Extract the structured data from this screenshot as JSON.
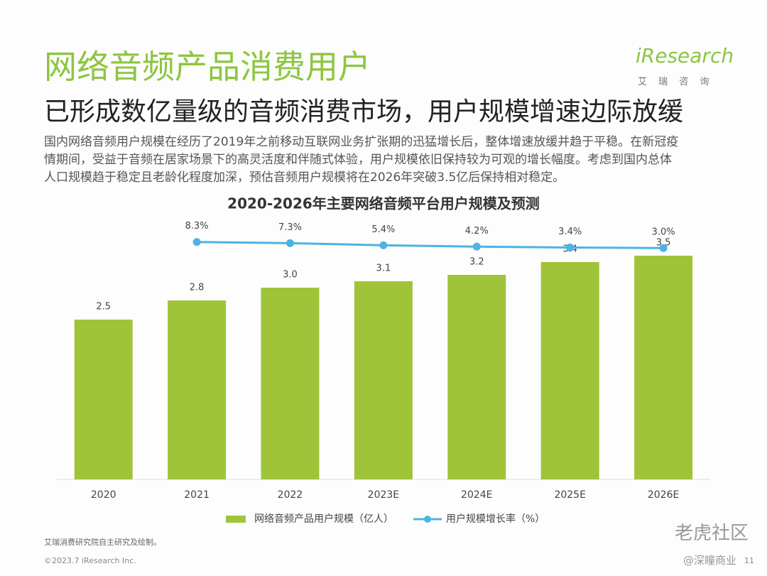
{
  "header": {
    "title": "网络音频产品消费用户",
    "subtitle": "已形成数亿量级的音频消费市场，用户规模增速边际放缓",
    "paragraph_lines": [
      "国内网络音频用户规模在经历了2019年之前移动互联网业务扩张期的迅猛增长后，整体增速放缓并趋于平稳。在新冠疫",
      "情期间，受益于音频在居家场景下的高灵活度和伴随式体验，用户规模依旧保持较为可观的增长幅度。考虑到国内总体",
      "人口规模趋于稳定且老龄化程度加深，预估音频用户规模将在2026年突破3.5亿后保持相对稳定。"
    ],
    "logo": "iResearch",
    "logo_sub": "艾 瑞 咨 询"
  },
  "chart_data": {
    "type": "bar",
    "title": "2020-2026年主要网络音频平台用户规模及预测",
    "categories": [
      "2020",
      "2021",
      "2022",
      "2023E",
      "2024E",
      "2025E",
      "2026E"
    ],
    "series": [
      {
        "name": "网络音频产品用户规模（亿人）",
        "color": "#9fc43a",
        "values": [
          2.5,
          2.8,
          3.0,
          3.1,
          3.2,
          3.4,
          3.5
        ],
        "value_labels": [
          "2.5",
          "2.8",
          "3.0",
          "3.1",
          "3.2",
          "3.4",
          "3.5"
        ]
      },
      {
        "name": "用户规模增长率（%）",
        "type": "line",
        "axis": "y2",
        "color": "#4db3e3",
        "values": [
          null,
          8.3,
          7.3,
          5.4,
          4.2,
          3.4,
          3.0
        ],
        "value_labels": [
          null,
          "8.3%",
          "7.3%",
          "5.4%",
          "4.2%",
          "3.4%",
          "3.0%"
        ]
      }
    ]
  },
  "footer": {
    "source": "艾瑞消费研究院自主研究及绘制。",
    "copyright": "©2023.7 iResearch Inc.",
    "page": "11",
    "watermark1": "老虎社区",
    "watermark2": "@深瞳商业"
  }
}
